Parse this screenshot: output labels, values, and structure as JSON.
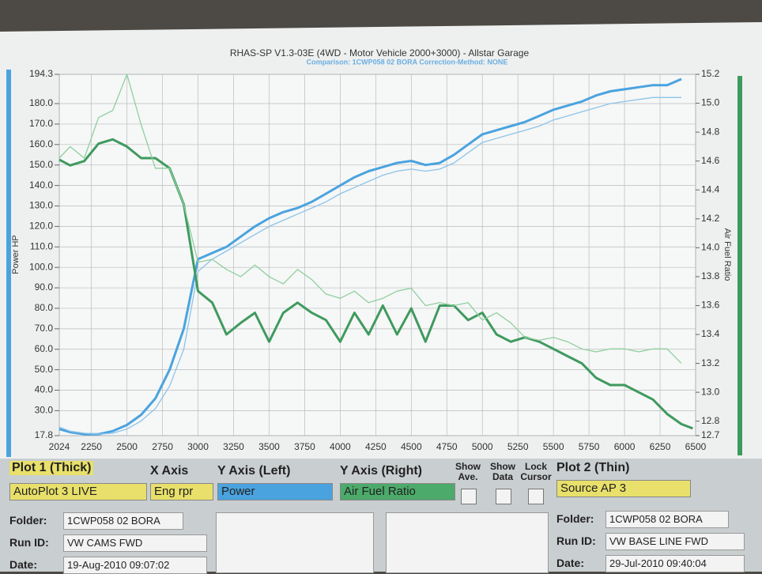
{
  "chart_data": {
    "type": "line",
    "title": "RHAS-SP V1.3-03E  (4WD - Motor Vehicle 2000+3000) - Allstar Garage",
    "subtitle": "Comparison: 1CWP058 02 BORA   Correction-Method: NONE",
    "y_label": "Power HP",
    "y2_label": "Air Fuel Ratio",
    "x": [
      2024,
      2100,
      2200,
      2300,
      2400,
      2500,
      2600,
      2700,
      2800,
      2900,
      3000,
      3100,
      3200,
      3300,
      3400,
      3500,
      3600,
      3700,
      3800,
      3900,
      4000,
      4100,
      4200,
      4300,
      4400,
      4500,
      4600,
      4700,
      4800,
      4900,
      5000,
      5100,
      5200,
      5300,
      5400,
      5500,
      5600,
      5700,
      5800,
      5900,
      6000,
      6100,
      6200,
      6300,
      6400,
      6480
    ],
    "xlim": [
      2024,
      6500
    ],
    "xticks": [
      2024,
      2250,
      2500,
      2750,
      3000,
      3250,
      3500,
      3750,
      4000,
      4250,
      4500,
      4750,
      5000,
      5250,
      5500,
      5750,
      6000,
      6250,
      6500
    ],
    "ylim": [
      17.8,
      194.3
    ],
    "yticks": [
      17.8,
      {
        "value": 30,
        "label": "30.0"
      },
      {
        "value": 40,
        "label": "40.0"
      },
      {
        "value": 50,
        "label": "50.0"
      },
      {
        "value": 60,
        "label": "60.0"
      },
      {
        "value": 70,
        "label": "70.0"
      },
      {
        "value": 80,
        "label": "80.0"
      },
      {
        "value": 90,
        "label": "90.0"
      },
      {
        "value": 100,
        "label": "100.0"
      },
      {
        "value": 110,
        "label": "110.0"
      },
      {
        "value": 120,
        "label": "120.0"
      },
      {
        "value": 130,
        "label": "130.0"
      },
      {
        "value": 140,
        "label": "140.0"
      },
      {
        "value": 150,
        "label": "150.0"
      },
      {
        "value": 160,
        "label": "160.0"
      },
      {
        "value": 170,
        "label": "170.0"
      },
      {
        "value": 180,
        "label": "180.0"
      },
      194.3
    ],
    "y2lim": [
      12.7,
      15.2
    ],
    "y2ticks": [
      12.7,
      12.8,
      {
        "value": 13,
        "label": "13.0"
      },
      13.2,
      13.4,
      13.6,
      13.8,
      {
        "value": 14,
        "label": "14.0"
      },
      14.2,
      14.4,
      14.6,
      14.8,
      {
        "value": 15,
        "label": "15.0"
      },
      15.2
    ],
    "grid": true,
    "series": [
      {
        "color": "#4aa3df",
        "width": 3,
        "values": [
          21,
          19.5,
          18.5,
          18.5,
          20,
          23,
          28,
          36,
          50,
          70,
          104,
          107,
          110,
          115,
          120,
          124,
          127,
          129,
          132,
          136,
          140,
          144,
          147,
          149,
          151,
          152,
          150,
          151,
          155,
          160,
          165,
          167,
          169,
          171,
          174,
          177,
          179,
          181,
          184,
          186,
          187,
          188,
          189,
          189,
          192,
          null
        ]
      },
      {
        "color": "#8cc4e8",
        "width": 1.3,
        "values": [
          22,
          20,
          19,
          18.5,
          19,
          21,
          25,
          31,
          42,
          60,
          98,
          104,
          108,
          112,
          116,
          120,
          123,
          126,
          129,
          132,
          136,
          139,
          142,
          145,
          147,
          148,
          147,
          148,
          151,
          156,
          161,
          163,
          165,
          167,
          169,
          172,
          174,
          176,
          178,
          180,
          181,
          182,
          183,
          183,
          183,
          null
        ]
      },
      {
        "color": "#3f9a5e",
        "width": 3,
        "axis": "y2",
        "values": [
          14.61,
          14.57,
          14.6,
          14.72,
          14.75,
          14.7,
          14.62,
          14.62,
          14.55,
          14.3,
          13.7,
          13.62,
          13.4,
          13.48,
          13.55,
          13.35,
          13.55,
          13.62,
          13.55,
          13.5,
          13.35,
          13.55,
          13.4,
          13.6,
          13.4,
          13.58,
          13.35,
          13.6,
          13.6,
          13.5,
          13.55,
          13.4,
          13.35,
          13.38,
          13.35,
          13.3,
          13.25,
          13.2,
          13.1,
          13.05,
          13.05,
          13.0,
          12.95,
          12.85,
          12.78,
          12.75
        ]
      },
      {
        "color": "#8fcf9f",
        "width": 1.3,
        "axis": "y2",
        "values": [
          14.62,
          14.7,
          14.62,
          14.9,
          14.95,
          15.2,
          14.85,
          14.55,
          14.55,
          14.3,
          13.9,
          13.92,
          13.85,
          13.8,
          13.88,
          13.8,
          13.75,
          13.85,
          13.78,
          13.68,
          13.65,
          13.7,
          13.62,
          13.65,
          13.7,
          13.72,
          13.6,
          13.62,
          13.6,
          13.62,
          13.5,
          13.55,
          13.48,
          13.38,
          13.36,
          13.38,
          13.35,
          13.3,
          13.28,
          13.3,
          13.3,
          13.28,
          13.3,
          13.3,
          13.2,
          null
        ]
      }
    ]
  },
  "panel": {
    "plot1": {
      "title": "Plot 1 (Thick)",
      "source": "AutoPlot 3 LIVE"
    },
    "x_axis": {
      "title": "X Axis",
      "value": "Eng rpr"
    },
    "y_left": {
      "title": "Y Axis (Left)",
      "value": "Power"
    },
    "y_right": {
      "title": "Y Axis (Right)",
      "value": "Air Fuel Ratio"
    },
    "checks": [
      "Show Ave.",
      "Show Data",
      "Lock Cursor"
    ],
    "plot2": {
      "title": "Plot 2 (Thin)",
      "source": "Source AP 3"
    },
    "run1": {
      "folder_label": "Folder:",
      "folder": "1CWP058 02 BORA",
      "run_label": "Run ID:",
      "run": "VW CAMS FWD",
      "date_label": "Date:",
      "date": "19-Aug-2010  09:07:02"
    },
    "run2": {
      "folder_label": "Folder:",
      "folder": "1CWP058 02 BORA",
      "run_label": "Run ID:",
      "run": "VW BASE LINE FWD",
      "date_label": "Date:",
      "date": "29-Jul-2010  09:40:04"
    }
  }
}
